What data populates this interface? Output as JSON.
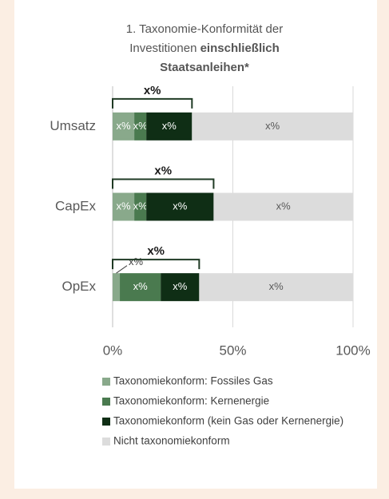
{
  "chart_data": {
    "type": "stacked-barh",
    "title": [
      "1. Taxonomie-Konformität der",
      "Investitionen",
      "einschließlich",
      "Staatsanleihen*"
    ],
    "categories": [
      "Umsatz",
      "CapEx",
      "OpEx"
    ],
    "series": [
      {
        "name": "Taxonomiekonform: Fossiles Gas",
        "color": "#89a98b",
        "values": [
          9,
          9,
          3
        ],
        "value_labels": [
          "x%",
          "x%",
          "x%"
        ]
      },
      {
        "name": "Taxonomiekonform: Kernenergie",
        "color": "#4a7a4f",
        "values": [
          5,
          5,
          17
        ],
        "value_labels": [
          "x%",
          "x%",
          "x%"
        ]
      },
      {
        "name": "Taxonomiekonform (kein Gas oder Kernenergie)",
        "color": "#0f2e15",
        "values": [
          19,
          28,
          16
        ],
        "value_labels": [
          "x%",
          "x%",
          "x%"
        ]
      },
      {
        "name": "Nicht taxonomiekonform",
        "color": "#dcdcdc",
        "values": [
          67,
          58,
          64
        ],
        "value_labels": [
          "x%",
          "x%",
          "x%"
        ]
      }
    ],
    "totals": [
      "x%",
      "x%",
      "x%"
    ],
    "xlim": [
      0,
      100
    ],
    "xticks": [
      {
        "value": 0,
        "label": "0%"
      },
      {
        "value": 50,
        "label": "50%"
      },
      {
        "value": 100,
        "label": "100%"
      }
    ],
    "grid": true,
    "legend": "bottom"
  }
}
